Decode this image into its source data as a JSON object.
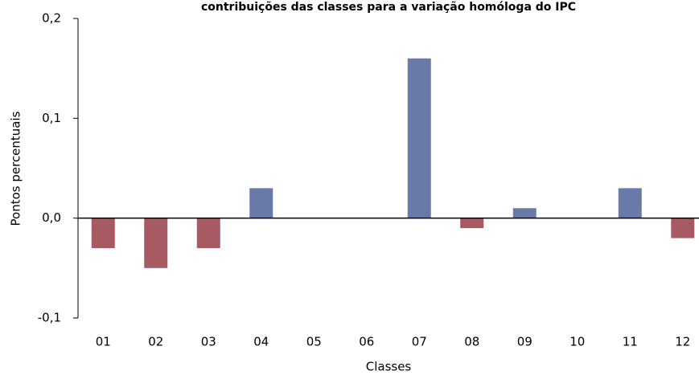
{
  "chart_data": {
    "type": "bar",
    "title": "contribuições das classes para a variação homóloga do IPC",
    "x_label": "Classes",
    "y_label": "Pontos percentuais",
    "categories": [
      "01",
      "02",
      "03",
      "04",
      "05",
      "06",
      "07",
      "08",
      "09",
      "10",
      "11",
      "12"
    ],
    "values": [
      -0.03,
      -0.05,
      -0.03,
      0.03,
      0,
      0,
      0.16,
      -0.01,
      0.01,
      0,
      0.03,
      -0.02
    ],
    "color_positive": "#6a7aa8",
    "color_negative": "#a85a62",
    "ylim": [
      -0.1,
      0.2
    ],
    "yticks": [
      {
        "value": -0.1,
        "label": "-0,1"
      },
      {
        "value": 0,
        "label": "0,0"
      },
      {
        "value": 0.1,
        "label": "0,1"
      },
      {
        "value": 0.2,
        "label": "0,2"
      }
    ],
    "grid": false
  }
}
